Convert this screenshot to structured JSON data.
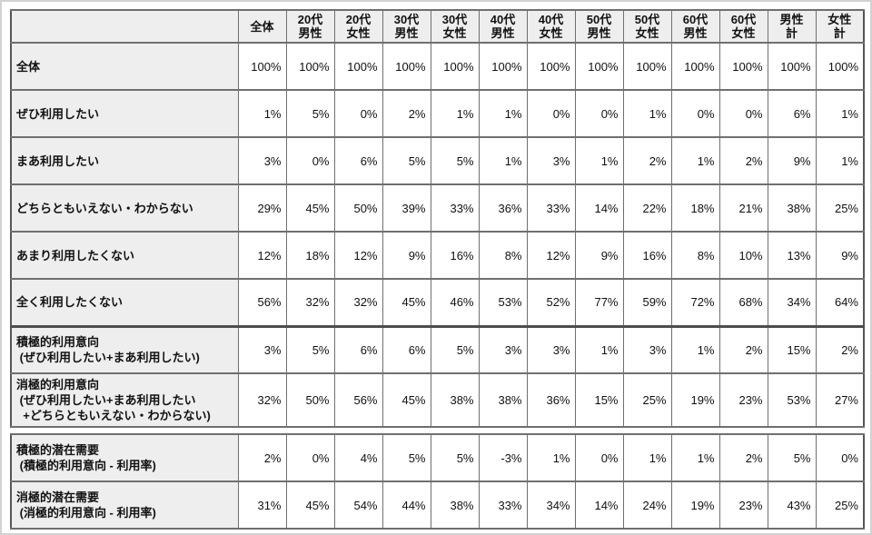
{
  "chart_data": {
    "type": "table",
    "title": "",
    "unit": "%",
    "columns": [
      "全体",
      "20代男性",
      "20代女性",
      "30代男性",
      "30代女性",
      "40代男性",
      "40代女性",
      "50代男性",
      "50代女性",
      "60代男性",
      "60代女性",
      "男性計",
      "女性計"
    ],
    "rows": [
      {
        "label": "全体",
        "label_lines": [
          "全体"
        ],
        "values": [
          "100%",
          "100%",
          "100%",
          "100%",
          "100%",
          "100%",
          "100%",
          "100%",
          "100%",
          "100%",
          "100%",
          "100%",
          "100%"
        ]
      },
      {
        "label": "ぜひ利用したい",
        "label_lines": [
          "ぜひ利用したい"
        ],
        "values": [
          "1%",
          "5%",
          "0%",
          "2%",
          "1%",
          "1%",
          "0%",
          "0%",
          "1%",
          "0%",
          "0%",
          "6%",
          "1%"
        ]
      },
      {
        "label": "まあ利用したい",
        "label_lines": [
          "まあ利用したい"
        ],
        "values": [
          "3%",
          "0%",
          "6%",
          "5%",
          "5%",
          "1%",
          "3%",
          "1%",
          "2%",
          "1%",
          "2%",
          "9%",
          "1%"
        ]
      },
      {
        "label": "どちらともいえない・わからない",
        "label_lines": [
          "どちらともいえない・わからない"
        ],
        "values": [
          "29%",
          "45%",
          "50%",
          "39%",
          "33%",
          "36%",
          "33%",
          "14%",
          "22%",
          "18%",
          "21%",
          "38%",
          "25%"
        ]
      },
      {
        "label": "あまり利用したくない",
        "label_lines": [
          "あまり利用したくない"
        ],
        "values": [
          "12%",
          "18%",
          "12%",
          "9%",
          "16%",
          "8%",
          "12%",
          "9%",
          "16%",
          "8%",
          "10%",
          "13%",
          "9%"
        ]
      },
      {
        "label": "全く利用したくない",
        "label_lines": [
          "全く利用したくない"
        ],
        "values": [
          "56%",
          "32%",
          "32%",
          "45%",
          "46%",
          "53%",
          "52%",
          "77%",
          "59%",
          "72%",
          "68%",
          "34%",
          "64%"
        ]
      },
      {
        "label": "積極的利用意向（ぜひ利用したい+まあ利用したい）",
        "label_lines": [
          "積極的利用意向",
          " (ぜひ利用したい+まあ利用したい)"
        ],
        "values": [
          "3%",
          "5%",
          "6%",
          "6%",
          "5%",
          "3%",
          "3%",
          "1%",
          "3%",
          "1%",
          "2%",
          "15%",
          "2%"
        ]
      },
      {
        "label": "消極的利用意向（ぜひ利用したい+まあ利用したい+どちらともいえない・わからない）",
        "label_lines": [
          "消極的利用意向",
          " (ぜひ利用したい+まあ利用したい",
          "  +どちらともいえない・わからない)"
        ],
        "values": [
          "32%",
          "50%",
          "56%",
          "45%",
          "38%",
          "38%",
          "36%",
          "15%",
          "25%",
          "19%",
          "23%",
          "53%",
          "27%"
        ]
      },
      {
        "label": "積極的潜在需要（積極的利用意向 - 利用率）",
        "label_lines": [
          "積極的潜在需要",
          " (積極的利用意向 - 利用率)"
        ],
        "values": [
          "2%",
          "0%",
          "4%",
          "5%",
          "5%",
          "-3%",
          "1%",
          "0%",
          "1%",
          "1%",
          "2%",
          "5%",
          "0%"
        ]
      },
      {
        "label": "消極的潜在需要（消極的利用意向 - 利用率）",
        "label_lines": [
          "消極的潜在需要",
          " (消極的利用意向 - 利用率)"
        ],
        "values": [
          "31%",
          "45%",
          "54%",
          "44%",
          "38%",
          "33%",
          "34%",
          "14%",
          "24%",
          "19%",
          "23%",
          "43%",
          "25%"
        ]
      }
    ]
  },
  "layout_meta": {
    "corner_cell": "",
    "column_header_lines": [
      [
        "全体"
      ],
      [
        "20代",
        "男性"
      ],
      [
        "20代",
        "女性"
      ],
      [
        "30代",
        "男性"
      ],
      [
        "30代",
        "女性"
      ],
      [
        "40代",
        "男性"
      ],
      [
        "40代",
        "女性"
      ],
      [
        "50代",
        "男性"
      ],
      [
        "50代",
        "女性"
      ],
      [
        "60代",
        "男性"
      ],
      [
        "60代",
        "女性"
      ],
      [
        "男性",
        "計"
      ],
      [
        "女性",
        "計"
      ]
    ],
    "tables": [
      {
        "name": "survey-table-main",
        "has_header": true,
        "row_indices": [
          0,
          1,
          2,
          3,
          4,
          5,
          6,
          7
        ],
        "thick_top_rows": [
          6
        ]
      },
      {
        "name": "survey-table-demand",
        "has_header": false,
        "row_indices": [
          8,
          9
        ],
        "thick_top_rows": []
      }
    ],
    "colors": {
      "header_bg": "#eeeeee",
      "cell_bg": "#ffffff",
      "grid_line": "#6f6f6f",
      "section_line": "#4d4d4d",
      "outer_frame": "#d2d2d2",
      "text": "#111111"
    }
  }
}
